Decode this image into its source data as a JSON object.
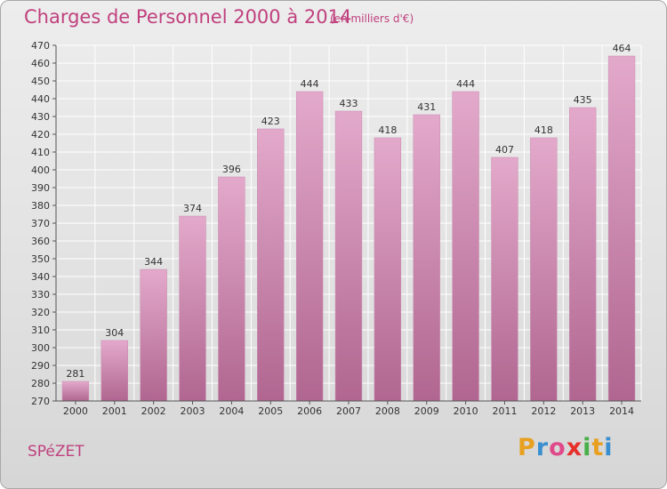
{
  "chart_data": {
    "type": "bar",
    "title": "Charges de Personnel 2000 à 2014",
    "subtitle": "(en milliers d'€)",
    "xlabel": "",
    "ylabel": "",
    "categories": [
      "2000",
      "2001",
      "2002",
      "2003",
      "2004",
      "2005",
      "2006",
      "2007",
      "2008",
      "2009",
      "2010",
      "2011",
      "2012",
      "2013",
      "2014"
    ],
    "values": [
      281,
      304,
      344,
      374,
      396,
      423,
      444,
      433,
      418,
      431,
      444,
      407,
      418,
      435,
      464
    ],
    "ylim": [
      270,
      470
    ],
    "ytick_step": 10,
    "grid": true,
    "bar_color": "#d58fb7",
    "accent_color": "#c0407e"
  },
  "footer": {
    "place": "SPéZET",
    "logo_letters": [
      "P",
      "r",
      "o",
      "x",
      "i",
      "t",
      "i"
    ],
    "logo_colors": [
      "#e8a020",
      "#3a8fd0",
      "#e04a8a",
      "#e6302c",
      "#47b047",
      "#e8a020",
      "#3a8fd0"
    ]
  }
}
